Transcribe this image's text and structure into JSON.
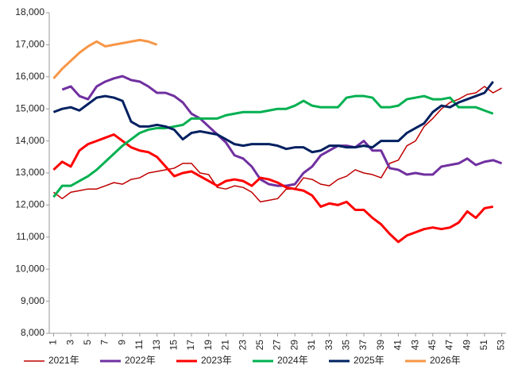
{
  "chart_data": {
    "type": "line",
    "x": [
      1,
      2,
      3,
      4,
      5,
      6,
      7,
      8,
      9,
      10,
      11,
      12,
      13,
      14,
      15,
      16,
      17,
      18,
      19,
      20,
      21,
      22,
      23,
      24,
      25,
      26,
      27,
      28,
      29,
      30,
      31,
      32,
      33,
      34,
      35,
      36,
      37,
      38,
      39,
      40,
      41,
      42,
      43,
      44,
      45,
      46,
      47,
      48,
      49,
      50,
      51,
      52,
      53
    ],
    "xlim": [
      0.5,
      53.5
    ],
    "xticks": [
      1,
      3,
      5,
      7,
      9,
      11,
      13,
      15,
      17,
      19,
      21,
      23,
      25,
      27,
      29,
      31,
      33,
      35,
      37,
      39,
      41,
      43,
      45,
      47,
      49,
      51,
      53
    ],
    "ylim": [
      8000,
      18000
    ],
    "yticks": [
      {
        "value": 8000,
        "label": "8,000"
      },
      {
        "value": 9000,
        "label": "9,000"
      },
      {
        "value": 10000,
        "label": "10,000"
      },
      {
        "value": 11000,
        "label": "11,000"
      },
      {
        "value": 12000,
        "label": "12,000"
      },
      {
        "value": 13000,
        "label": "13,000"
      },
      {
        "value": 14000,
        "label": "14,000"
      },
      {
        "value": 15000,
        "label": "15,000"
      },
      {
        "value": 16000,
        "label": "16,000"
      },
      {
        "value": 17000,
        "label": "17,000"
      },
      {
        "value": 18000,
        "label": "18,000"
      }
    ],
    "grid": false,
    "legend": "bottom",
    "series": [
      {
        "name": "2021年",
        "color": "#c00000",
        "width": 1.5,
        "values": [
          12400,
          12200,
          12400,
          12450,
          12500,
          12500,
          12600,
          12700,
          12650,
          12800,
          12850,
          13000,
          13050,
          13100,
          13150,
          13300,
          13300,
          13000,
          12950,
          12550,
          12500,
          12600,
          12550,
          12400,
          12100,
          12150,
          12200,
          12500,
          12500,
          12850,
          12800,
          12650,
          12600,
          12800,
          12900,
          13100,
          13000,
          12950,
          12850,
          13300,
          13400,
          13850,
          14000,
          14450,
          14700,
          15000,
          15200,
          15300,
          15450,
          15500,
          15700,
          15500,
          15650
        ]
      },
      {
        "name": "2022年",
        "color": "#7030a0",
        "width": 3,
        "values": [
          null,
          15600,
          15700,
          15400,
          15300,
          15700,
          15850,
          15950,
          16020,
          15900,
          15850,
          15700,
          15500,
          15500,
          15400,
          15200,
          14850,
          14700,
          14450,
          14200,
          13950,
          13550,
          13450,
          13200,
          12800,
          12650,
          12600,
          12600,
          12650,
          13000,
          13200,
          13550,
          13700,
          13850,
          13850,
          13800,
          14000,
          13700,
          13700,
          13150,
          13100,
          12950,
          13000,
          12950,
          12950,
          13200,
          13250,
          13300,
          13450,
          13250,
          13350,
          13400,
          13300
        ]
      },
      {
        "name": "2023年",
        "color": "#ff0000",
        "width": 3,
        "values": [
          13100,
          13350,
          13200,
          13700,
          13900,
          14000,
          14100,
          14200,
          14000,
          13800,
          13700,
          13650,
          13500,
          13200,
          12900,
          13000,
          13050,
          12900,
          12750,
          12600,
          12750,
          12800,
          12750,
          12600,
          12850,
          12800,
          12700,
          12550,
          12500,
          12450,
          12300,
          11950,
          12050,
          12000,
          12100,
          11850,
          11850,
          11600,
          11400,
          11100,
          10850,
          11050,
          11150,
          11250,
          11300,
          11250,
          11300,
          11450,
          11800,
          11600,
          11900,
          11950,
          null
        ]
      },
      {
        "name": "2024年",
        "color": "#00b050",
        "width": 3,
        "values": [
          12250,
          12600,
          12600,
          12750,
          12900,
          13100,
          13350,
          13600,
          13850,
          14050,
          14250,
          14350,
          14400,
          14400,
          14450,
          14500,
          14700,
          14700,
          14700,
          14700,
          14800,
          14850,
          14900,
          14900,
          14900,
          14950,
          15000,
          15000,
          15100,
          15250,
          15100,
          15050,
          15050,
          15050,
          15350,
          15400,
          15400,
          15350,
          15050,
          15050,
          15100,
          15300,
          15350,
          15400,
          15300,
          15300,
          15350,
          15050,
          15050,
          15050,
          14950,
          14850,
          null
        ]
      },
      {
        "name": "2025年",
        "color": "#002060",
        "width": 3,
        "values": [
          14900,
          15000,
          15050,
          14950,
          15150,
          15350,
          15400,
          15350,
          15250,
          14600,
          14450,
          14450,
          14500,
          14450,
          14350,
          14050,
          14250,
          14300,
          14250,
          14200,
          14050,
          13900,
          13850,
          13900,
          13900,
          13900,
          13850,
          13750,
          13800,
          13800,
          13650,
          13700,
          13850,
          13850,
          13800,
          13800,
          13850,
          13800,
          14000,
          14000,
          14000,
          14250,
          14400,
          14550,
          14900,
          15100,
          15050,
          15200,
          15300,
          15400,
          15500,
          15850,
          null
        ]
      },
      {
        "name": "2026年",
        "color": "#f79646",
        "width": 3,
        "values": [
          15950,
          16250,
          16500,
          16750,
          16950,
          17100,
          16950,
          17000,
          17050,
          17100,
          17150,
          17100,
          17000,
          null,
          null,
          null,
          null,
          null,
          null,
          null,
          null,
          null,
          null,
          null,
          null,
          null,
          null,
          null,
          null,
          null,
          null,
          null,
          null,
          null,
          null,
          null,
          null,
          null,
          null,
          null,
          null,
          null,
          null,
          null,
          null,
          null,
          null,
          null,
          null,
          null,
          null,
          null,
          null
        ]
      }
    ]
  }
}
